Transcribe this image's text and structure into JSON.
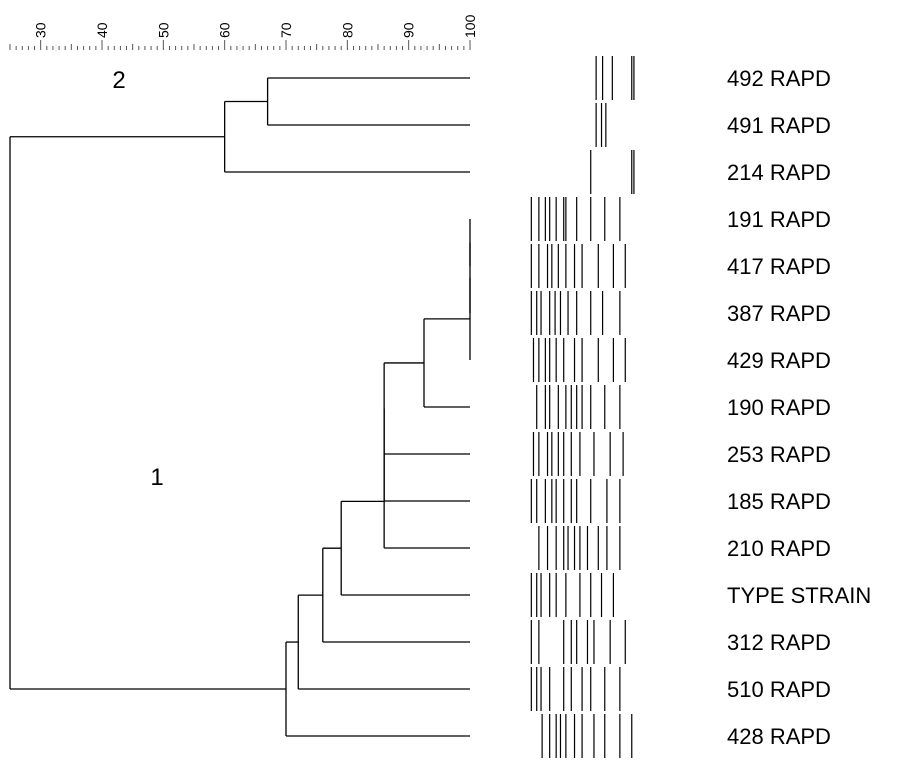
{
  "scale": {
    "min": 25,
    "max": 100,
    "tick_labels": [
      "30",
      "40",
      "50",
      "60",
      "70",
      "80",
      "90",
      "100"
    ]
  },
  "clusters": [
    {
      "label": "2",
      "members": [
        "492 RAPD",
        "491 RAPD",
        "214 RAPD"
      ]
    },
    {
      "label": "1",
      "members": [
        "191 RAPD",
        "417 RAPD",
        "387 RAPD",
        "429 RAPD",
        "190 RAPD",
        "253 RAPD",
        "185 RAPD",
        "210 RAPD",
        "TYPE STRAIN",
        "312 RAPD",
        "510 RAPD",
        "428 RAPD"
      ]
    }
  ],
  "strains": [
    "492 RAPD",
    "491 RAPD",
    "214 RAPD",
    "191 RAPD",
    "417 RAPD",
    "387 RAPD",
    "429 RAPD",
    "190 RAPD",
    "253 RAPD",
    "185 RAPD",
    "210 RAPD",
    "TYPE STRAIN",
    "312 RAPD",
    "510 RAPD",
    "428 RAPD"
  ],
  "dendrogram": {
    "leaf_order": [
      "492 RAPD",
      "491 RAPD",
      "214 RAPD",
      "191 RAPD",
      "417 RAPD",
      "387 RAPD",
      "429 RAPD",
      "190 RAPD",
      "253 RAPD",
      "185 RAPD",
      "210 RAPD",
      "TYPE STRAIN",
      "312 RAPD",
      "510 RAPD",
      "428 RAPD"
    ],
    "merges": [
      {
        "a": 0,
        "b": 1,
        "similarity": 67
      },
      {
        "a": 15,
        "b": 2,
        "similarity": 60
      },
      {
        "a": 3,
        "b": 4,
        "similarity": 100
      },
      {
        "a": 17,
        "b": 5,
        "similarity": 100
      },
      {
        "a": 18,
        "b": 6,
        "similarity": 100
      },
      {
        "a": 19,
        "b": 7,
        "similarity": 92.5
      },
      {
        "a": 20,
        "b": 8,
        "similarity": 86
      },
      {
        "a": 21,
        "b": 9,
        "similarity": 86
      },
      {
        "a": 22,
        "b": 10,
        "similarity": 86
      },
      {
        "a": 23,
        "b": 11,
        "similarity": 79
      },
      {
        "a": 24,
        "b": 12,
        "similarity": 76
      },
      {
        "a": 25,
        "b": 13,
        "similarity": 72
      },
      {
        "a": 26,
        "b": 14,
        "similarity": 70
      },
      {
        "a": 16,
        "b": 27,
        "similarity": 25
      }
    ]
  },
  "bands": [
    [
      0.64,
      0.7,
      0.79,
      0.97,
      0.99
    ],
    [
      0.64,
      0.69,
      0.73
    ],
    [
      0.59,
      0.97,
      0.99
    ],
    [
      0.04,
      0.11,
      0.17,
      0.21,
      0.27,
      0.34,
      0.36,
      0.46,
      0.59,
      0.72,
      0.86
    ],
    [
      0.04,
      0.11,
      0.19,
      0.23,
      0.29,
      0.36,
      0.44,
      0.51,
      0.66,
      0.8,
      0.91
    ],
    [
      0.04,
      0.09,
      0.13,
      0.21,
      0.26,
      0.31,
      0.38,
      0.46,
      0.59,
      0.7,
      0.86
    ],
    [
      0.06,
      0.11,
      0.17,
      0.21,
      0.27,
      0.34,
      0.44,
      0.51,
      0.66,
      0.8,
      0.91
    ],
    [
      0.09,
      0.17,
      0.21,
      0.29,
      0.36,
      0.41,
      0.46,
      0.51,
      0.59,
      0.72,
      0.86
    ],
    [
      0.06,
      0.11,
      0.19,
      0.23,
      0.29,
      0.34,
      0.41,
      0.49,
      0.62,
      0.77,
      0.89
    ],
    [
      0.04,
      0.09,
      0.17,
      0.23,
      0.27,
      0.34,
      0.41,
      0.46,
      0.59,
      0.74,
      0.86
    ],
    [
      0.11,
      0.19,
      0.27,
      0.34,
      0.38,
      0.44,
      0.49,
      0.56,
      0.66,
      0.74,
      0.86
    ],
    [
      0.04,
      0.09,
      0.13,
      0.21,
      0.27,
      0.36,
      0.49,
      0.59,
      0.69,
      0.8
    ],
    [
      0.04,
      0.11,
      0.34,
      0.41,
      0.46,
      0.56,
      0.62,
      0.77,
      0.91
    ],
    [
      0.04,
      0.09,
      0.13,
      0.21,
      0.34,
      0.41,
      0.51,
      0.59,
      0.72,
      0.86
    ],
    [
      0.14,
      0.21,
      0.27,
      0.31,
      0.36,
      0.44,
      0.51,
      0.62,
      0.72,
      0.86,
      0.97
    ]
  ]
}
